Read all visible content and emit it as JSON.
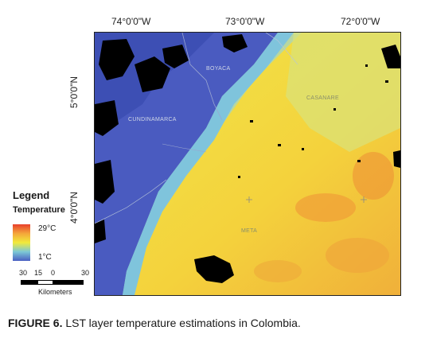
{
  "map": {
    "top_ticks": [
      "74°0'0\"W",
      "73°0'0\"W",
      "72°0'0\"W"
    ],
    "left_ticks": [
      "5°0'0\"N",
      "4°0'0\"N"
    ],
    "places": [
      "BOYACA",
      "CASANARE",
      "CUNDINAMARCA",
      "META"
    ]
  },
  "legend": {
    "title": "Legend",
    "subtitle": "Temperature",
    "high": "29°C",
    "low": "1°C",
    "colors": {
      "high": "#e8402c",
      "mid": "#f2ea3a",
      "low": "#4a5fc2"
    }
  },
  "scale": {
    "numbers": [
      "30",
      "15",
      "0",
      "30"
    ],
    "unit": "Kilometers"
  },
  "caption": {
    "label": "FIGURE 6.",
    "text": " LST layer temperature estimations in Colombia."
  }
}
